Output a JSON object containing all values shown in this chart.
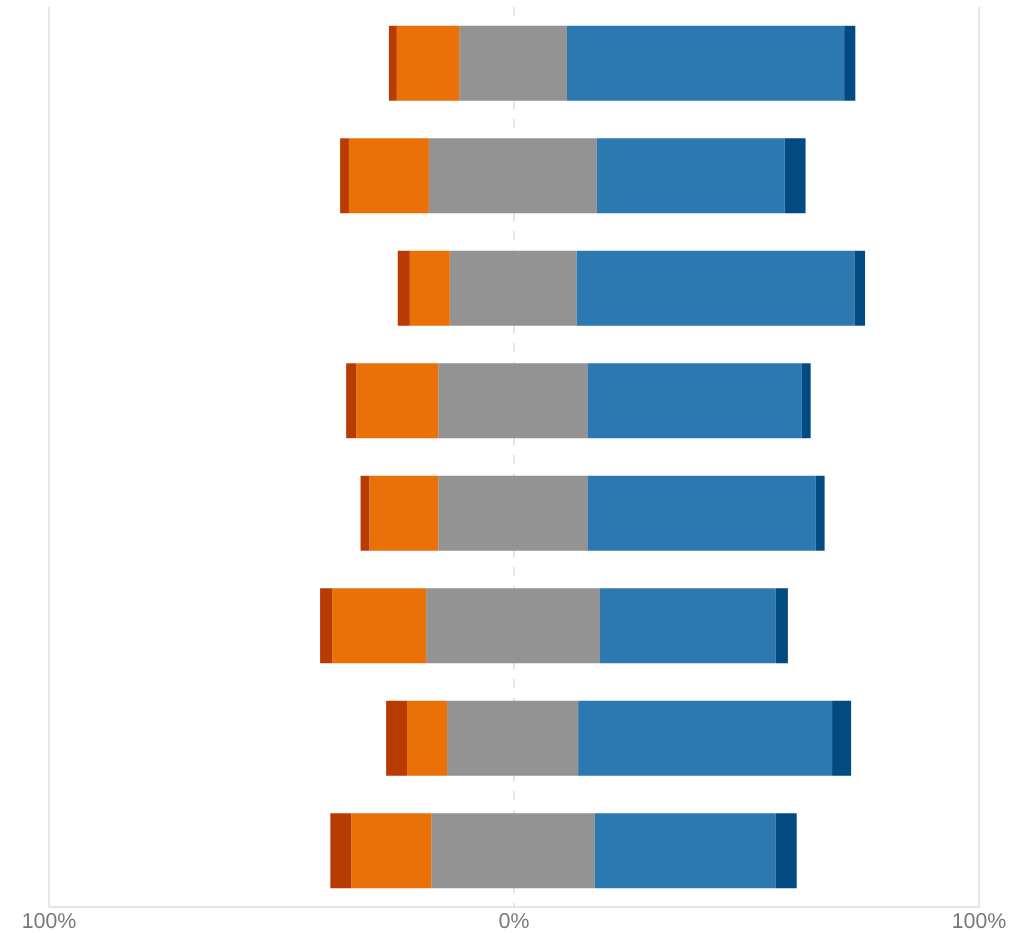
{
  "chart_data": {
    "type": "bar",
    "orientation": "horizontal",
    "stacked": true,
    "categories": [
      null,
      null,
      null,
      null,
      null,
      null,
      null,
      null
    ],
    "series": [
      {
        "color": "#939393",
        "values": [
          -11.8,
          -18.3,
          -13.8,
          -16.3,
          -16.3,
          -18.9,
          -14.4,
          -17.8
        ]
      },
      {
        "color": "#e97108",
        "values": [
          -13.4,
          -17.2,
          -8.6,
          -17.6,
          -14.8,
          -20.2,
          -8.6,
          -17.2
        ]
      },
      {
        "color": "#b83b04",
        "values": [
          -1.7,
          -1.9,
          -2.6,
          -2.2,
          -1.9,
          -2.6,
          -4.5,
          -4.5
        ]
      },
      {
        "color": "#939393",
        "values": [
          11.4,
          17.8,
          13.5,
          15.9,
          15.9,
          18.5,
          13.8,
          17.4
        ]
      },
      {
        "color": "#2c78b0",
        "values": [
          59.6,
          40.4,
          59.8,
          46.0,
          49.0,
          37.8,
          54.6,
          38.9
        ]
      },
      {
        "color": "#024a82",
        "values": [
          2.4,
          4.5,
          2.2,
          1.9,
          1.9,
          2.6,
          4.1,
          4.5
        ]
      }
    ],
    "xlim": [
      -100,
      100
    ],
    "xticks": [
      {
        "value": -100,
        "label": "100%"
      },
      {
        "value": 0,
        "label": "0%"
      },
      {
        "value": 100,
        "label": "100%"
      }
    ],
    "ref_lines": [
      {
        "axis": "x",
        "value": -100,
        "line_style": "solid",
        "color": "#e6e6e6"
      },
      {
        "axis": "x",
        "value": 0,
        "line_style": "dashed",
        "color": "#e2e2e2"
      },
      {
        "axis": "x",
        "value": 100,
        "line_style": "solid",
        "color": "#e6e6e6"
      }
    ]
  }
}
